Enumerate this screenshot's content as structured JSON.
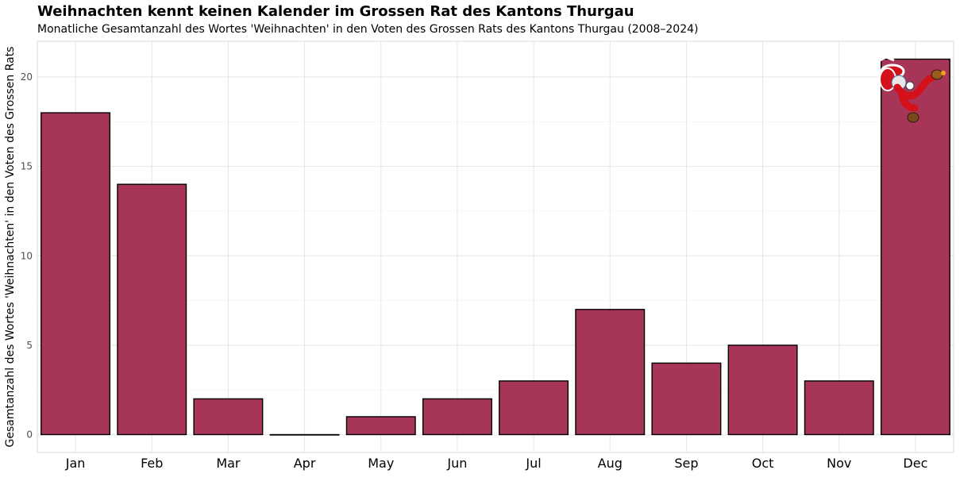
{
  "chart_data": {
    "type": "bar",
    "title": "Weihnachten kennt keinen Kalender im Grossen Rat des Kantons Thurgau",
    "subtitle": "Monatliche Gesamtanzahl des Wortes 'Weihnachten' in den Voten des Grossen Rats des Kantons Thurgau (2008–2024)",
    "xlabel": "",
    "ylabel": "Gesamtanzahl des Wortes 'Weihnachten' in den Voten des Grossen Rats",
    "categories": [
      "Jan",
      "Feb",
      "Mar",
      "Apr",
      "May",
      "Jun",
      "Jul",
      "Aug",
      "Sep",
      "Oct",
      "Nov",
      "Dec"
    ],
    "values": [
      18,
      14,
      2,
      0,
      1,
      2,
      3,
      7,
      4,
      5,
      3,
      21
    ],
    "ylim": [
      -1,
      22
    ],
    "yticks": [
      0,
      5,
      10,
      15,
      20
    ],
    "grid": true,
    "legend": "none",
    "bar_color": "#A73558",
    "bar_outline": "#000000",
    "annotation_icon": "santa-claus-icon"
  }
}
